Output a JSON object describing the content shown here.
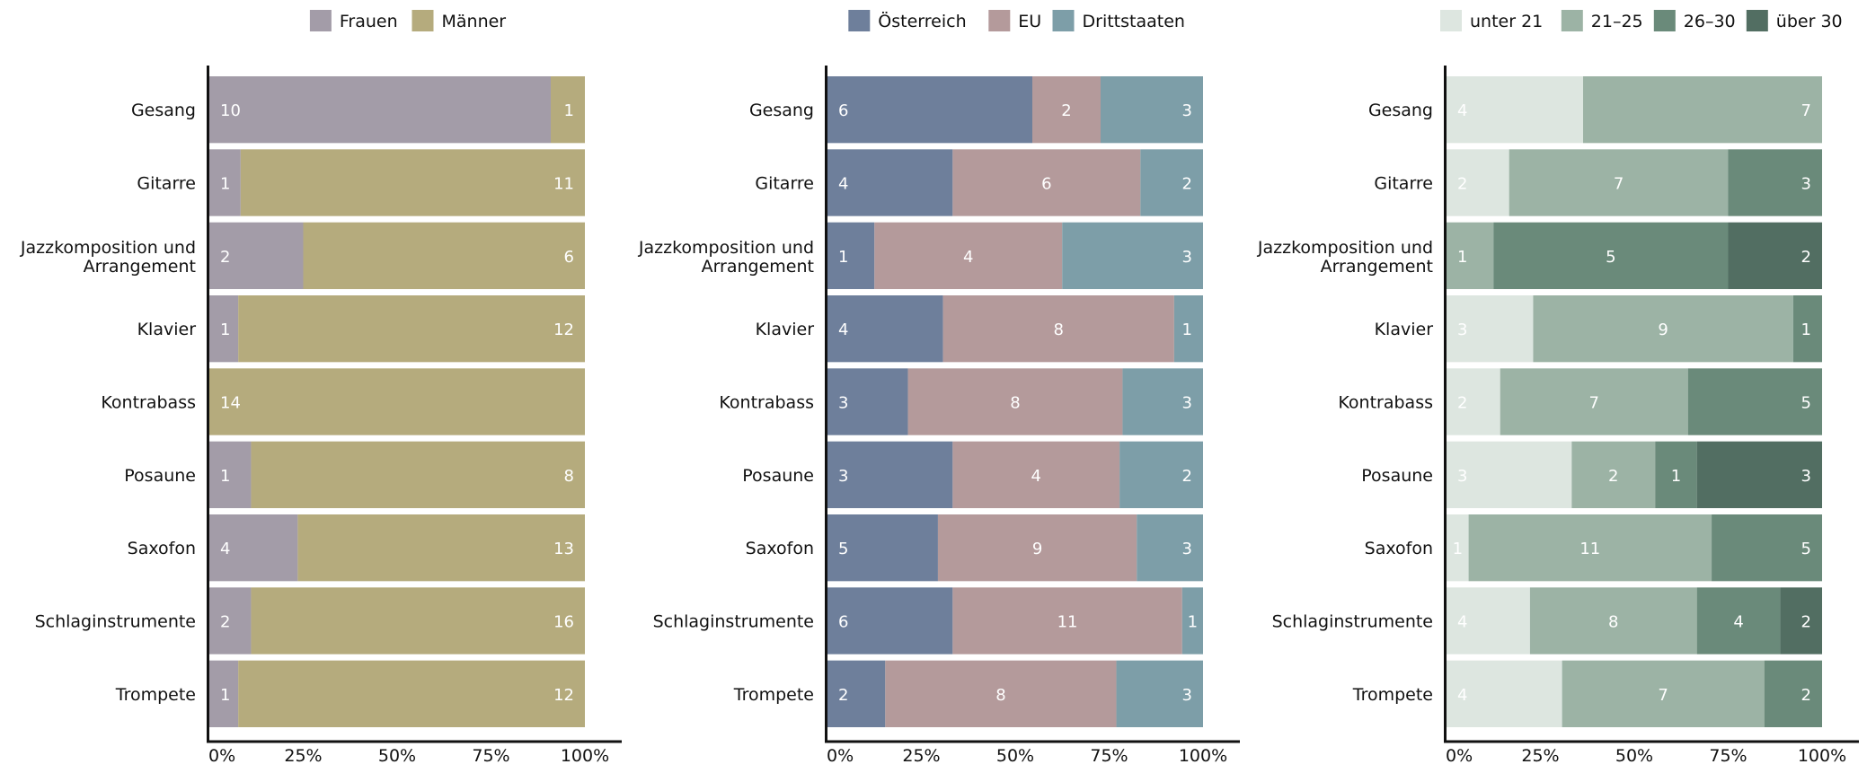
{
  "chart_data": [
    {
      "type": "bar",
      "orientation": "horizontal",
      "stacked": "percent",
      "categories": [
        "Gesang",
        "Gitarre",
        "Jazzkomposition und Arrangement",
        "Klavier",
        "Kontrabass",
        "Posaune",
        "Saxofon",
        "Schlaginstrumente",
        "Trompete"
      ],
      "series": [
        {
          "name": "Frauen",
          "color": "#a39ca8",
          "label_color": "#ffffff",
          "values": [
            10,
            1,
            2,
            1,
            0,
            1,
            4,
            2,
            1
          ]
        },
        {
          "name": "Männer",
          "color": "#b5ab7d",
          "label_color": "#ffffff",
          "values": [
            1,
            11,
            6,
            12,
            14,
            8,
            13,
            16,
            12
          ]
        }
      ],
      "xlim": [
        0,
        100
      ],
      "xticks": [
        "0%",
        "25%",
        "50%",
        "75%",
        "100%"
      ],
      "legend_position": "top",
      "title": "",
      "xlabel": "",
      "ylabel": ""
    },
    {
      "type": "bar",
      "orientation": "horizontal",
      "stacked": "percent",
      "categories": [
        "Gesang",
        "Gitarre",
        "Jazzkomposition und Arrangement",
        "Klavier",
        "Kontrabass",
        "Posaune",
        "Saxofon",
        "Schlaginstrumente",
        "Trompete"
      ],
      "series": [
        {
          "name": "Österreich",
          "color": "#6e7f9b",
          "label_color": "#ffffff",
          "values": [
            6,
            4,
            1,
            4,
            3,
            3,
            5,
            6,
            2
          ]
        },
        {
          "name": "EU",
          "color": "#b49a9b",
          "label_color": "#ffffff",
          "values": [
            2,
            6,
            4,
            8,
            8,
            4,
            9,
            11,
            8
          ]
        },
        {
          "name": "Drittstaaten",
          "color": "#7d9ea8",
          "label_color": "#ffffff",
          "values": [
            3,
            2,
            3,
            1,
            3,
            2,
            3,
            1,
            3
          ]
        }
      ],
      "xlim": [
        0,
        100
      ],
      "xticks": [
        "0%",
        "25%",
        "50%",
        "75%",
        "100%"
      ],
      "legend_position": "top",
      "title": "",
      "xlabel": "",
      "ylabel": ""
    },
    {
      "type": "bar",
      "orientation": "horizontal",
      "stacked": "percent",
      "categories": [
        "Gesang",
        "Gitarre",
        "Jazzkomposition und Arrangement",
        "Klavier",
        "Kontrabass",
        "Posaune",
        "Saxofon",
        "Schlaginstrumente",
        "Trompete"
      ],
      "series": [
        {
          "name": "unter 21",
          "color": "#dde6e0",
          "label_color": "#ffffff",
          "values": [
            4,
            2,
            0,
            3,
            2,
            3,
            1,
            4,
            4
          ]
        },
        {
          "name": "21–25",
          "color": "#9cb3a5",
          "label_color": "#ffffff",
          "values": [
            7,
            7,
            1,
            9,
            7,
            2,
            11,
            8,
            7
          ]
        },
        {
          "name": "26–30",
          "color": "#6a8a7a",
          "label_color": "#ffffff",
          "values": [
            0,
            3,
            5,
            1,
            5,
            1,
            5,
            4,
            2
          ]
        },
        {
          "name": "über 30",
          "color": "#526e62",
          "label_color": "#ffffff",
          "values": [
            0,
            0,
            2,
            0,
            0,
            3,
            0,
            2,
            0
          ]
        }
      ],
      "xlim": [
        0,
        100
      ],
      "xticks": [
        "0%",
        "25%",
        "50%",
        "75%",
        "100%"
      ],
      "legend_position": "top",
      "title": "",
      "xlabel": "",
      "ylabel": ""
    }
  ]
}
